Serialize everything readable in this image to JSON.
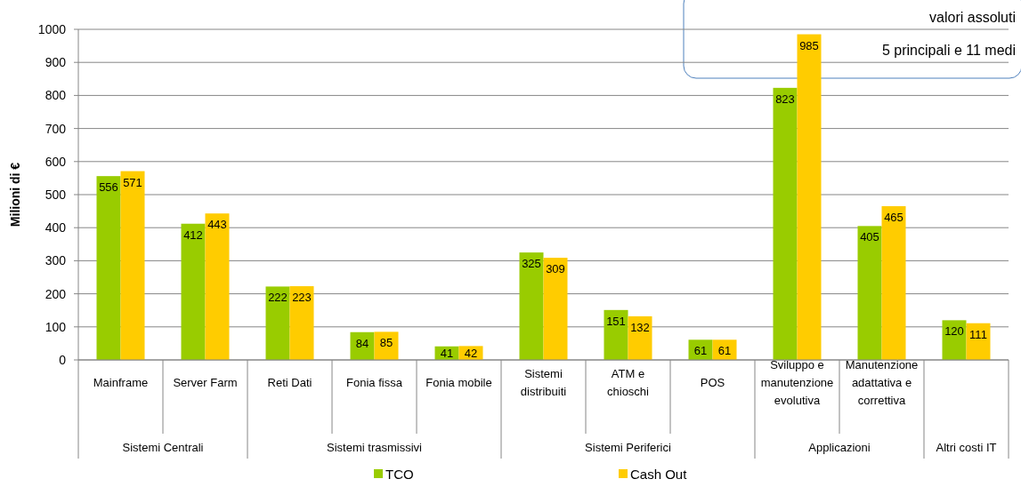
{
  "chart_data": {
    "type": "bar",
    "ylabel": "Milioni di €",
    "categories": [
      "Mainframe",
      "Server Farm",
      "Reti Dati",
      "Fonia fissa",
      "Fonia mobile",
      "Sistemi distribuiti",
      "ATM e chioschi",
      "POS",
      "Sviluppo e manutenzione evolutiva",
      "Manutenzione adattativa e correttiva",
      null
    ],
    "series": [
      {
        "name": "TCO",
        "color": "#99cc00",
        "values": [
          556,
          412,
          222,
          84,
          41,
          325,
          151,
          61,
          823,
          405,
          120
        ]
      },
      {
        "name": "Cash Out",
        "color": "#ffcc00",
        "values": [
          571,
          443,
          223,
          85,
          42,
          309,
          132,
          61,
          985,
          465,
          111
        ]
      }
    ],
    "ylim": [
      0,
      1000
    ],
    "yticks": [
      0,
      100,
      200,
      300,
      400,
      500,
      600,
      700,
      800,
      900,
      1000
    ],
    "grid": "y",
    "legend": "bottom",
    "data_labels": true,
    "annotations": [
      "valori assoluti",
      "5 principali e 11 medi",
      "Sistemi Centrali",
      "Sistemi trasmissivi",
      "Sistemi Periferici",
      "Applicazioni",
      "Altri costi IT"
    ]
  }
}
